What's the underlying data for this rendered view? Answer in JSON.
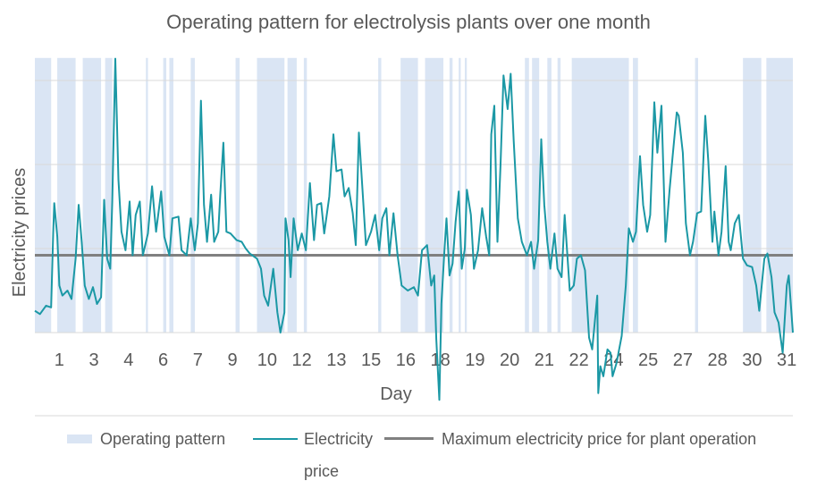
{
  "chart_data": {
    "type": "line",
    "title": "Operating pattern for electrolysis plants over one month",
    "x_label": "Day",
    "y_label": "Electricity prices",
    "xlim": [
      0,
      744
    ],
    "ylim": [
      -45,
      165
    ],
    "yticks": [
      0,
      50,
      100,
      150
    ],
    "grid": true,
    "legend": "bottom",
    "xticks": [
      {
        "value": 24,
        "label": "1"
      },
      {
        "value": 58,
        "label": "3"
      },
      {
        "value": 92,
        "label": "4"
      },
      {
        "value": 126,
        "label": "6"
      },
      {
        "value": 160,
        "label": "7"
      },
      {
        "value": 194,
        "label": "9"
      },
      {
        "value": 228,
        "label": "10"
      },
      {
        "value": 262,
        "label": "12"
      },
      {
        "value": 296,
        "label": "13"
      },
      {
        "value": 330,
        "label": "15"
      },
      {
        "value": 364,
        "label": "16"
      },
      {
        "value": 398,
        "label": "18"
      },
      {
        "value": 432,
        "label": "19"
      },
      {
        "value": 466,
        "label": "20"
      },
      {
        "value": 500,
        "label": "21"
      },
      {
        "value": 534,
        "label": "22"
      },
      {
        "value": 568,
        "label": "24"
      },
      {
        "value": 602,
        "label": "25"
      },
      {
        "value": 636,
        "label": "27"
      },
      {
        "value": 670,
        "label": "28"
      },
      {
        "value": 704,
        "label": "30"
      },
      {
        "value": 738,
        "label": "31"
      }
    ],
    "operating_pattern": {
      "name": "Operating pattern",
      "color": "#dae5f4",
      "intervals": [
        [
          0,
          16
        ],
        [
          22,
          40
        ],
        [
          47,
          65
        ],
        [
          69,
          76
        ],
        [
          109,
          111
        ],
        [
          126,
          129
        ],
        [
          132,
          136
        ],
        [
          153,
          157
        ],
        [
          197,
          201
        ],
        [
          218,
          245
        ],
        [
          248,
          257
        ],
        [
          264,
          267
        ],
        [
          337,
          340
        ],
        [
          359,
          376
        ],
        [
          383,
          401
        ],
        [
          407,
          410
        ],
        [
          416,
          418
        ],
        [
          422,
          424
        ],
        [
          481,
          485
        ],
        [
          488,
          495
        ],
        [
          503,
          507
        ],
        [
          513,
          516
        ],
        [
          527,
          583
        ],
        [
          587,
          592
        ],
        [
          648,
          651
        ],
        [
          695,
          713
        ],
        [
          718,
          744
        ]
      ]
    },
    "max_price": {
      "name": "Maximum electricity price for plant operation",
      "color": "#808080",
      "value": 46
    },
    "x": [
      0,
      5,
      11,
      16,
      18,
      19,
      22,
      24,
      27,
      32,
      36,
      40,
      43,
      46,
      49,
      53,
      57,
      61,
      65,
      68,
      71,
      74,
      76,
      79,
      82,
      85,
      89,
      93,
      96,
      99,
      103,
      106,
      111,
      115,
      119,
      124,
      127,
      132,
      135,
      141,
      144,
      149,
      153,
      157,
      160,
      163,
      166,
      169,
      173,
      176,
      180,
      182,
      185,
      188,
      192,
      198,
      203,
      207,
      211,
      218,
      222,
      225,
      229,
      234,
      238,
      241,
      245,
      246,
      249,
      251,
      254,
      258,
      262,
      266,
      270,
      274,
      277,
      281,
      284,
      289,
      293,
      296,
      301,
      304,
      308,
      312,
      315,
      318,
      322,
      325,
      330,
      334,
      338,
      341,
      345,
      348,
      352,
      356,
      360,
      366,
      372,
      376,
      380,
      385,
      389,
      392,
      394,
      397,
      399,
      402,
      404,
      407,
      410,
      413,
      416,
      419,
      422,
      424,
      428,
      431,
      435,
      439,
      443,
      446,
      448,
      451,
      454,
      457,
      460,
      464,
      467,
      470,
      474,
      478,
      483,
      487,
      490,
      494,
      497,
      500,
      503,
      506,
      510,
      513,
      517,
      520,
      525,
      529,
      532,
      536,
      540,
      544,
      547,
      552,
      553,
      555,
      558,
      562,
      565,
      567,
      571,
      576,
      580,
      583,
      587,
      590,
      594,
      597,
      601,
      604,
      608,
      611,
      615,
      619,
      623,
      626,
      630,
      632,
      636,
      639,
      643,
      646,
      650,
      654,
      658,
      661,
      665,
      667,
      671,
      674,
      678,
      681,
      683,
      687,
      691,
      695,
      699,
      704,
      708,
      711,
      716,
      719,
      723,
      726,
      730,
      734,
      738,
      740,
      744
    ],
    "series": [
      {
        "name": "Electricity price",
        "color": "#1b98a5",
        "values": [
          13,
          11,
          16,
          15,
          59,
          77,
          57,
          28,
          22,
          25,
          20,
          44,
          76,
          54,
          28,
          20,
          27,
          17,
          21,
          79,
          44,
          38,
          78,
          163,
          91,
          60,
          49,
          78,
          46,
          70,
          78,
          46,
          59,
          87,
          60,
          84,
          57,
          46,
          68,
          69,
          49,
          46,
          68,
          49,
          65,
          138,
          76,
          54,
          82,
          54,
          60,
          82,
          113,
          60,
          59,
          55,
          54,
          50,
          47,
          44,
          38,
          22,
          16,
          38,
          12,
          0,
          12,
          68,
          55,
          33,
          68,
          49,
          59,
          49,
          89,
          55,
          76,
          77,
          59,
          81,
          118,
          96,
          97,
          81,
          86,
          71,
          52,
          119,
          81,
          52,
          60,
          70,
          49,
          68,
          74,
          46,
          71,
          46,
          28,
          25,
          27,
          22,
          49,
          52,
          28,
          34,
          -4,
          -40,
          17,
          49,
          68,
          34,
          41,
          66,
          84,
          38,
          50,
          85,
          70,
          38,
          49,
          74,
          57,
          46,
          118,
          135,
          54,
          99,
          153,
          133,
          154,
          114,
          68,
          54,
          46,
          54,
          38,
          55,
          115,
          76,
          54,
          38,
          59,
          38,
          33,
          70,
          25,
          28,
          44,
          46,
          37,
          -3,
          -10,
          22,
          -36,
          -20,
          -26,
          -10,
          -12,
          -26,
          -18,
          -2,
          28,
          62,
          54,
          60,
          105,
          76,
          60,
          70,
          137,
          107,
          135,
          54,
          85,
          105,
          131,
          129,
          107,
          65,
          46,
          54,
          71,
          72,
          129,
          102,
          54,
          72,
          46,
          60,
          99,
          54,
          49,
          65,
          70,
          44,
          40,
          39,
          28,
          13,
          44,
          47,
          33,
          12,
          6,
          -12,
          28,
          34,
          0
        ]
      }
    ]
  }
}
